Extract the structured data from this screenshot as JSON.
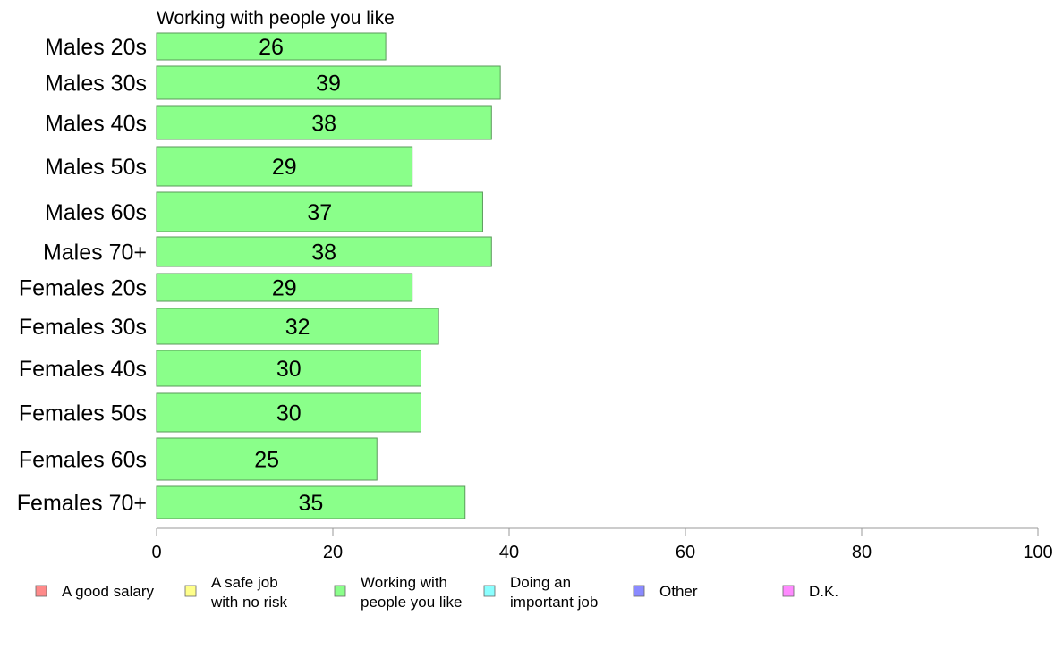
{
  "chart_data": {
    "type": "bar",
    "orientation": "horizontal",
    "title": "Working with people you like",
    "categories": [
      "Males 20s",
      "Males 30s",
      "Males 40s",
      "Males 50s",
      "Males 60s",
      "Males 70+",
      "Females 20s",
      "Females 30s",
      "Females 40s",
      "Females 50s",
      "Females 60s",
      "Females 70+"
    ],
    "series": [
      {
        "name": "Working with people you like",
        "values": [
          26,
          39,
          38,
          29,
          37,
          38,
          29,
          32,
          30,
          30,
          25,
          35
        ]
      }
    ],
    "value_labels": [
      "26",
      "39",
      "38",
      "29",
      "37",
      "38",
      "29",
      "32",
      "30",
      "30",
      "25",
      "35"
    ],
    "xlim": [
      0,
      100
    ],
    "xticks": [
      0,
      20,
      40,
      60,
      80,
      100
    ],
    "grid": false,
    "legend": {
      "placement": "bottom",
      "items": [
        {
          "label": [
            "A good salary"
          ],
          "color": "#ff8a8a"
        },
        {
          "label": [
            "A safe job",
            "with no risk"
          ],
          "color": "#ffff8a"
        },
        {
          "label": [
            "Working with",
            "people you like"
          ],
          "color": "#8aff8a"
        },
        {
          "label": [
            "Doing an",
            "important job"
          ],
          "color": "#8affff"
        },
        {
          "label": [
            "Other"
          ],
          "color": "#8a8aff"
        },
        {
          "label": [
            "D.K."
          ],
          "color": "#ff8aff"
        }
      ]
    },
    "colors": {
      "bar_fill": "#8aff8a",
      "bar_stroke": "#5a9a5a",
      "axis": "#999999"
    }
  }
}
